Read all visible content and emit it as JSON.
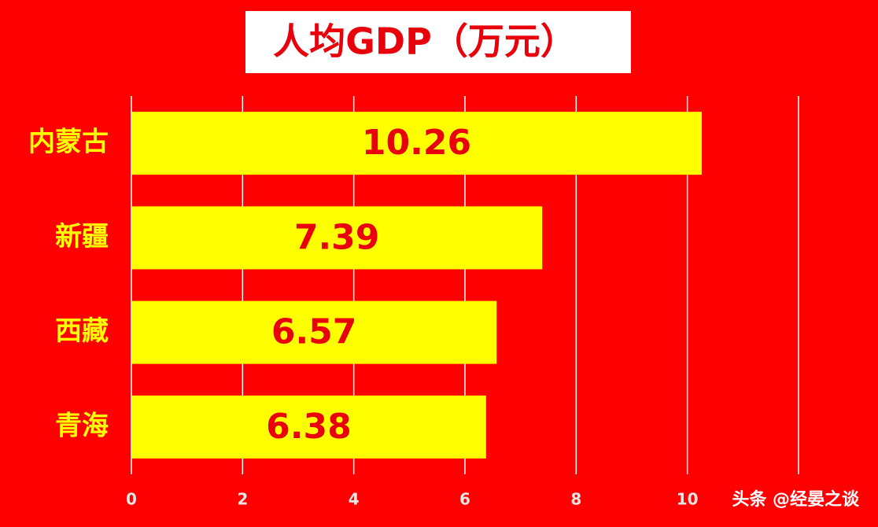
{
  "chart_data": {
    "type": "bar",
    "orientation": "horizontal",
    "title": "人均GDP（万元）",
    "categories": [
      "内蒙古",
      "新疆",
      "西藏",
      "青海"
    ],
    "values": [
      10.26,
      7.39,
      6.57,
      6.38
    ],
    "color": "#ffff00",
    "label_color": "#e8000b",
    "background": "#ff0000",
    "xlim": [
      0,
      12
    ],
    "xticks": [
      0,
      2,
      4,
      6,
      8,
      10
    ],
    "grid": true
  },
  "watermark": "头条 @经晏之谈"
}
